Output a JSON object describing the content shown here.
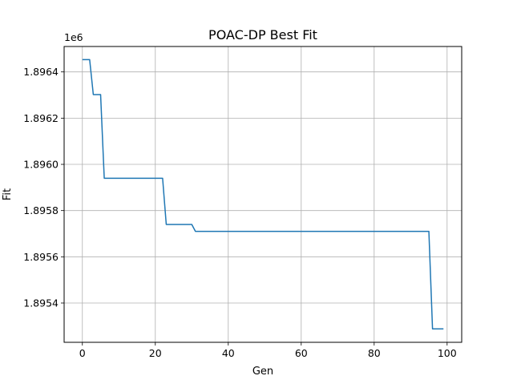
{
  "chart_data": {
    "type": "line",
    "title": "POAC-DP Best Fit",
    "xlabel": "Gen",
    "ylabel": "Fit",
    "y_offset_label": "1e6",
    "xlim": [
      -5,
      104
    ],
    "ylim": [
      1.89523,
      1.89651
    ],
    "grid": true,
    "x_ticks": [
      0,
      20,
      40,
      60,
      80,
      100
    ],
    "x_tick_labels": [
      "0",
      "20",
      "40",
      "60",
      "80",
      "100"
    ],
    "y_ticks": [
      1.8954,
      1.8956,
      1.8958,
      1.896,
      1.8962,
      1.8964
    ],
    "y_tick_labels": [
      "1.8954",
      "1.8956",
      "1.8958",
      "1.8960",
      "1.8962",
      "1.8964"
    ],
    "series": [
      {
        "color": "#1f77b4",
        "x": [
          0,
          2,
          3,
          5,
          6,
          22,
          23,
          30,
          31,
          95,
          96,
          99
        ],
        "y": [
          1.896453,
          1.896453,
          1.896302,
          1.896302,
          1.89594,
          1.89594,
          1.89574,
          1.89574,
          1.89571,
          1.89571,
          1.895288,
          1.895288
        ]
      }
    ]
  }
}
